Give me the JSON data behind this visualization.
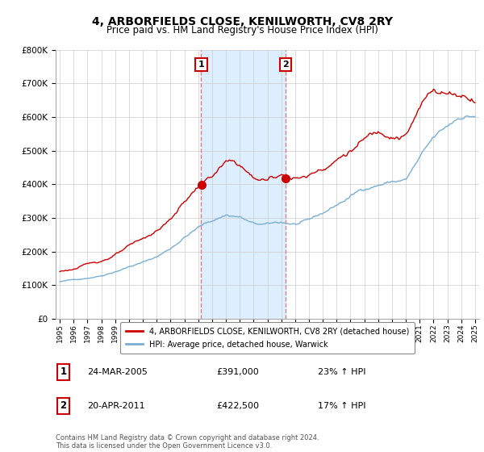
{
  "title": "4, ARBORFIELDS CLOSE, KENILWORTH, CV8 2RY",
  "subtitle": "Price paid vs. HM Land Registry's House Price Index (HPI)",
  "ylim": [
    0,
    800000
  ],
  "yticks": [
    0,
    100000,
    200000,
    300000,
    400000,
    500000,
    600000,
    700000,
    800000
  ],
  "legend_label_red": "4, ARBORFIELDS CLOSE, KENILWORTH, CV8 2RY (detached house)",
  "legend_label_blue": "HPI: Average price, detached house, Warwick",
  "event1_label": "1",
  "event1_date": "24-MAR-2005",
  "event1_price": "£391,000",
  "event1_hpi": "23% ↑ HPI",
  "event1_year": 2005.21,
  "event2_label": "2",
  "event2_date": "20-APR-2011",
  "event2_price": "£422,500",
  "event2_hpi": "17% ↑ HPI",
  "event2_year": 2011.3,
  "copyright": "Contains HM Land Registry data © Crown copyright and database right 2024.\nThis data is licensed under the Open Government Licence v3.0.",
  "red_color": "#cc0000",
  "blue_color": "#7aafd4",
  "event_line_color": "#e08080",
  "span_color": "#ddeeff",
  "xlim_start": 1994.7,
  "xlim_end": 2025.3,
  "xtick_years": [
    1995,
    1996,
    1997,
    1998,
    1999,
    2000,
    2001,
    2002,
    2003,
    2004,
    2005,
    2006,
    2007,
    2008,
    2009,
    2010,
    2011,
    2012,
    2013,
    2014,
    2015,
    2016,
    2017,
    2018,
    2019,
    2020,
    2021,
    2022,
    2023,
    2024,
    2025
  ]
}
